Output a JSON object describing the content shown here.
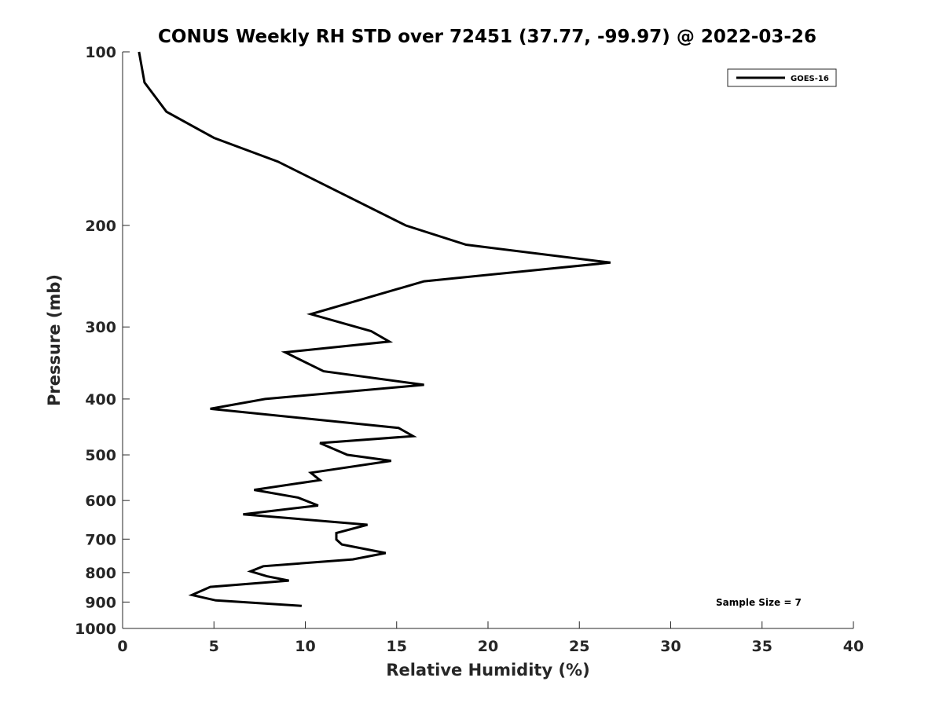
{
  "chart_data": {
    "type": "line",
    "title": "CONUS Weekly RH STD over 72451 (37.77, -99.97) @ 2022-03-26",
    "xlabel": "Relative Humidity (%)",
    "ylabel": "Pressure (mb)",
    "xlim": [
      0,
      40
    ],
    "ylim": [
      1000,
      100
    ],
    "y_scale": "log",
    "y_reversed": true,
    "grid": false,
    "x_ticks": [
      "0",
      "5",
      "10",
      "15",
      "20",
      "25",
      "30",
      "35",
      "40"
    ],
    "y_ticks": [
      "100",
      "200",
      "300",
      "400",
      "500",
      "600",
      "700",
      "800",
      "900",
      "1000"
    ],
    "legend": {
      "position": "top-right",
      "entries": [
        "GOES-16"
      ]
    },
    "annotation": "Sample Size = 7",
    "series": [
      {
        "name": "GOES-16",
        "color": "#000000",
        "x": [
          0.9,
          1.2,
          2.4,
          5.0,
          8.5,
          15.5,
          18.8,
          26.7,
          16.5,
          10.3,
          13.6,
          14.6,
          8.9,
          11.0,
          16.5,
          7.8,
          4.8,
          15.1,
          15.9,
          10.8,
          12.3,
          14.7,
          10.3,
          10.8,
          7.2,
          9.6,
          10.7,
          6.6,
          13.4,
          11.7,
          11.7,
          12.0,
          14.4,
          12.6,
          7.7,
          7.0,
          7.9,
          9.1,
          4.8,
          3.8,
          5.1,
          9.8
        ],
        "y": [
          100,
          113,
          127,
          141,
          155,
          200,
          216,
          232,
          250,
          285,
          305,
          318,
          332,
          358,
          378,
          400,
          416,
          449,
          464,
          477,
          500,
          512,
          537,
          553,
          575,
          593,
          612,
          634,
          661,
          683,
          701,
          715,
          740,
          759,
          780,
          796,
          812,
          826,
          847,
          875,
          894,
          914
        ]
      }
    ]
  }
}
